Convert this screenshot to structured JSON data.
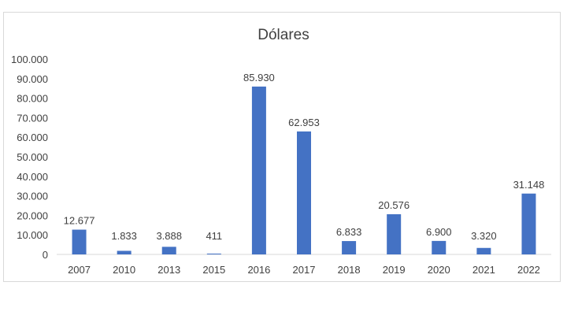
{
  "chart_data": {
    "type": "bar",
    "title": "Dólares",
    "categories": [
      "2007",
      "2010",
      "2013",
      "2015",
      "2016",
      "2017",
      "2018",
      "2019",
      "2020",
      "2021",
      "2022"
    ],
    "values": [
      12677,
      1833,
      3888,
      411,
      85930,
      62953,
      6833,
      20576,
      6900,
      3320,
      31148
    ],
    "data_labels": [
      "12.677",
      "1.833",
      "3.888",
      "411",
      "85.930",
      "62.953",
      "6.833",
      "20.576",
      "6.900",
      "3.320",
      "31.148"
    ],
    "y_ticks": [
      0,
      10000,
      20000,
      30000,
      40000,
      50000,
      60000,
      70000,
      80000,
      90000,
      100000
    ],
    "y_tick_labels": [
      "0",
      "10.000",
      "20.000",
      "30.000",
      "40.000",
      "50.000",
      "60.000",
      "70.000",
      "80.000",
      "90.000",
      "100.000"
    ],
    "ylim": [
      0,
      100000
    ],
    "grid": false,
    "legend": "none",
    "bar_color": "#4472C4"
  }
}
